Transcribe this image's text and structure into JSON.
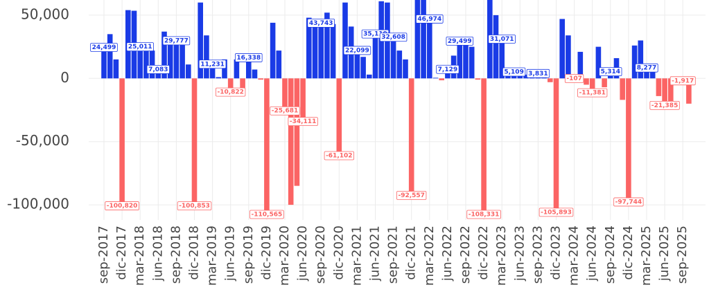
{
  "chart_data": {
    "type": "bar",
    "categories": [
      "sep-2017",
      null,
      null,
      "dic-2017",
      null,
      null,
      "mar-2018",
      null,
      null,
      "jun-2018",
      null,
      null,
      "sep-2018",
      null,
      null,
      "dic-2018",
      null,
      null,
      "mar-2019",
      null,
      null,
      "jun-2019",
      null,
      null,
      "sep-2019",
      null,
      null,
      "dic-2019",
      null,
      null,
      "mar-2020",
      null,
      null,
      "jun-2020",
      null,
      null,
      "sep-2020",
      null,
      null,
      "dic-2020",
      null,
      null,
      "mar-2021",
      null,
      null,
      "jun-2021",
      null,
      null,
      "sep-2021",
      null,
      null,
      "dic-2021",
      null,
      null,
      "mar-2022",
      null,
      null,
      "jun-2022",
      null,
      null,
      "sep-2022",
      null,
      null,
      "dic-2022",
      null,
      null,
      "mar-2023",
      null,
      null,
      "jun-2023",
      null,
      null,
      "sep-2023",
      null,
      null,
      "dic-2023",
      null,
      null,
      "mar-2024",
      null,
      null,
      "jun-2024",
      null,
      null,
      "sep-2024",
      null,
      null,
      "dic-2024",
      null,
      null,
      "mar-2025",
      null,
      null,
      "jun-2025",
      null,
      null,
      "sep-2025",
      null
    ],
    "values": [
      24499,
      35000,
      15000,
      -100820,
      54000,
      53500,
      25011,
      25000,
      22000,
      7083,
      37000,
      27000,
      29777,
      28000,
      11000,
      -100853,
      60000,
      34000,
      11231,
      1000,
      15000,
      -10822,
      15000,
      -13000,
      16338,
      7000,
      -1000,
      -110565,
      44000,
      22000,
      -25681,
      -100000,
      -85000,
      -34111,
      48000,
      42000,
      43743,
      52000,
      43000,
      -61102,
      60000,
      41000,
      22099,
      17000,
      3000,
      35119,
      61000,
      60000,
      32608,
      22000,
      15000,
      -92557,
      66000,
      66000,
      46974,
      500,
      -1500,
      7129,
      18000,
      29499,
      30000,
      25000,
      -1000,
      -108331,
      65000,
      50000,
      31071,
      8000,
      5109,
      5000,
      3000,
      3000,
      3831,
      3000,
      -3000,
      -105893,
      47000,
      34000,
      -107,
      21000,
      -5000,
      -11381,
      25000,
      -7000,
      5314,
      16000,
      -17000,
      -97744,
      26000,
      30000,
      8277,
      9000,
      -14000,
      -21385,
      -20000,
      -4000,
      -1917,
      -20000
    ],
    "value_labels": [
      "24,499",
      null,
      null,
      "-100,820",
      null,
      null,
      "25,011",
      null,
      null,
      "7,083",
      null,
      null,
      "29,777",
      null,
      null,
      "-100,853",
      null,
      null,
      "11,231",
      null,
      null,
      "-10,822",
      null,
      null,
      "16,338",
      null,
      null,
      "-110,565",
      null,
      null,
      "-25,681",
      null,
      null,
      "-34,111",
      null,
      null,
      "43,743",
      null,
      null,
      "-61,102",
      null,
      null,
      "22,099",
      null,
      null,
      "35,119",
      null,
      null,
      "32,608",
      null,
      null,
      "-92,557",
      null,
      null,
      "46,974",
      null,
      null,
      "7,129",
      null,
      "29,499",
      null,
      null,
      null,
      "-108,331",
      null,
      null,
      "31,071",
      null,
      "5,109",
      null,
      null,
      null,
      "3,831",
      null,
      null,
      "-105,893",
      null,
      null,
      "-107",
      null,
      null,
      "-11,381",
      null,
      null,
      "5,314",
      null,
      null,
      "-97,744",
      null,
      null,
      "8,277",
      null,
      null,
      "-21,385",
      null,
      null,
      "-1,917",
      null
    ],
    "color_positive": "#1a3be6",
    "color_negative": "#fb6464",
    "ylim": [
      -112000,
      62000
    ],
    "yticks": [
      {
        "value": -100000,
        "label": "-100,000"
      },
      {
        "value": -50000,
        "label": "-50,000"
      },
      0,
      {
        "value": 50000,
        "label": "50,000"
      }
    ],
    "grid": true
  }
}
